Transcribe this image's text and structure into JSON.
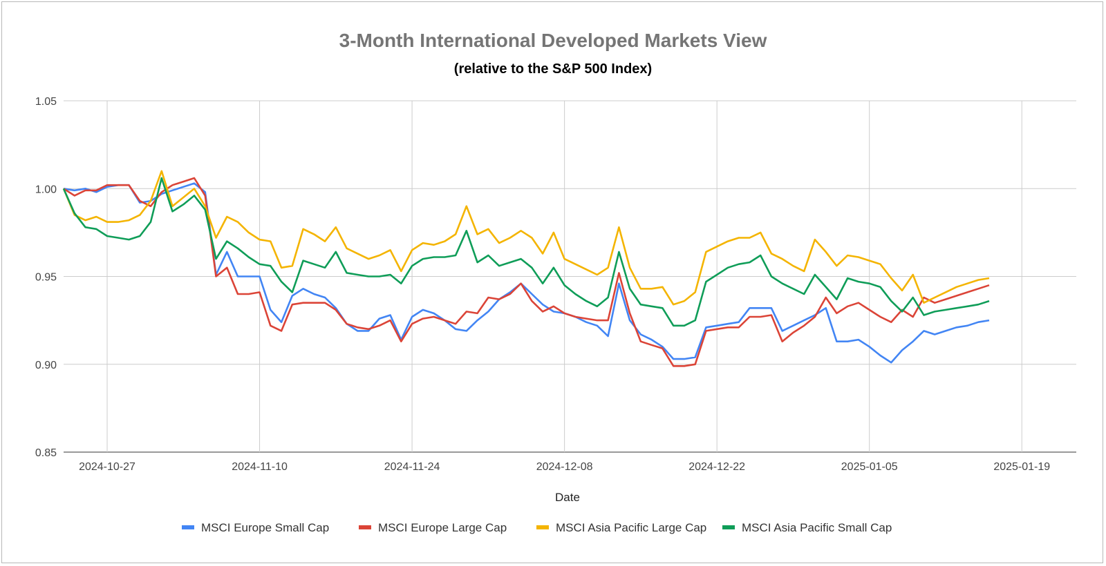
{
  "chart_data": {
    "type": "line",
    "title": "3-Month International Developed Markets View",
    "subtitle": "(relative to the S&P 500 Index)",
    "xlabel": "Date",
    "ylabel": "",
    "ylim": [
      0.85,
      1.05
    ],
    "yticks": [
      1.05,
      1.0,
      0.95,
      0.9,
      0.85
    ],
    "ytick_labels": [
      "1.05",
      "1.00",
      "0.95",
      "0.90",
      "0.85"
    ],
    "x_range_days": [
      -4,
      89
    ],
    "xticks": [
      {
        "day": 0,
        "label": "2024-10-27"
      },
      {
        "day": 14,
        "label": "2024-11-10"
      },
      {
        "day": 28,
        "label": "2024-11-24"
      },
      {
        "day": 42,
        "label": "2024-12-08"
      },
      {
        "day": 56,
        "label": "2024-12-22"
      },
      {
        "day": 70,
        "label": "2025-01-05"
      },
      {
        "day": 84,
        "label": "2025-01-19"
      }
    ],
    "x_days": [
      -4,
      -3,
      -2,
      -1,
      0,
      1,
      2,
      3,
      4,
      5,
      6,
      7,
      8,
      9,
      10,
      11,
      12,
      13,
      14,
      15,
      16,
      17,
      18,
      19,
      20,
      21,
      22,
      23,
      24,
      25,
      26,
      27,
      28,
      29,
      30,
      31,
      32,
      33,
      34,
      35,
      36,
      37,
      38,
      39,
      40,
      41,
      42,
      43,
      44,
      45,
      46,
      47,
      48,
      49,
      50,
      51,
      52,
      53,
      54,
      55,
      56,
      57,
      58,
      59,
      60,
      61,
      62,
      63,
      64,
      65,
      66,
      67,
      68,
      69,
      70,
      71,
      72,
      73,
      74,
      75,
      76,
      77,
      78,
      79,
      80,
      81,
      82,
      83,
      84,
      85
    ],
    "grid": true,
    "legend_position": "bottom",
    "series": [
      {
        "name": "MSCI Europe Small Cap",
        "color": "#4285f4",
        "values": [
          1.0,
          0.999,
          1.0,
          0.998,
          1.001,
          1.002,
          1.002,
          0.992,
          0.993,
          0.997,
          0.999,
          1.001,
          1.003,
          0.998,
          0.951,
          0.964,
          0.95,
          0.95,
          0.95,
          0.931,
          0.924,
          0.939,
          0.943,
          0.94,
          0.938,
          0.932,
          0.923,
          0.919,
          0.919,
          0.926,
          0.928,
          0.914,
          0.927,
          0.931,
          0.929,
          0.925,
          0.92,
          0.919,
          0.925,
          0.93,
          0.937,
          0.941,
          0.946,
          0.94,
          0.934,
          0.93,
          0.929,
          0.927,
          0.924,
          0.922,
          0.916,
          0.946,
          0.925,
          0.917,
          0.914,
          0.91,
          0.903,
          0.903,
          0.904,
          0.921,
          0.922,
          0.923,
          0.924,
          0.932,
          0.932,
          0.932,
          0.919,
          0.922,
          0.925,
          0.928,
          0.932,
          0.913,
          0.913,
          0.914,
          0.91,
          0.905,
          0.901,
          0.908,
          0.913,
          0.919,
          0.917,
          0.919,
          0.921,
          0.922,
          0.924,
          0.925
        ]
      },
      {
        "name": "MSCI Europe Large Cap",
        "color": "#db4437",
        "values": [
          1.0,
          0.996,
          0.999,
          0.999,
          1.002,
          1.002,
          1.002,
          0.993,
          0.99,
          0.998,
          1.002,
          1.004,
          1.006,
          0.996,
          0.95,
          0.955,
          0.94,
          0.94,
          0.941,
          0.922,
          0.919,
          0.934,
          0.935,
          0.935,
          0.935,
          0.931,
          0.923,
          0.921,
          0.92,
          0.922,
          0.925,
          0.913,
          0.923,
          0.926,
          0.927,
          0.925,
          0.923,
          0.93,
          0.929,
          0.938,
          0.937,
          0.94,
          0.946,
          0.936,
          0.93,
          0.933,
          0.929,
          0.927,
          0.926,
          0.925,
          0.925,
          0.952,
          0.929,
          0.913,
          0.911,
          0.909,
          0.899,
          0.899,
          0.9,
          0.919,
          0.92,
          0.921,
          0.921,
          0.927,
          0.927,
          0.928,
          0.913,
          0.918,
          0.922,
          0.927,
          0.938,
          0.929,
          0.933,
          0.935,
          0.931,
          0.927,
          0.924,
          0.931,
          0.927,
          0.938,
          0.935,
          0.937,
          0.939,
          0.941,
          0.943,
          0.945
        ]
      },
      {
        "name": "MSCI Asia Pacific Large Cap",
        "color": "#f4b400",
        "values": [
          1.0,
          0.985,
          0.982,
          0.984,
          0.981,
          0.981,
          0.982,
          0.985,
          0.993,
          1.01,
          0.99,
          0.995,
          1.0,
          0.99,
          0.972,
          0.984,
          0.981,
          0.975,
          0.971,
          0.97,
          0.955,
          0.956,
          0.977,
          0.974,
          0.97,
          0.978,
          0.966,
          0.963,
          0.96,
          0.962,
          0.965,
          0.953,
          0.965,
          0.969,
          0.968,
          0.97,
          0.974,
          0.99,
          0.974,
          0.977,
          0.969,
          0.972,
          0.976,
          0.972,
          0.963,
          0.975,
          0.96,
          0.957,
          0.954,
          0.951,
          0.955,
          0.978,
          0.955,
          0.943,
          0.943,
          0.944,
          0.934,
          0.936,
          0.941,
          0.964,
          0.967,
          0.97,
          0.972,
          0.972,
          0.975,
          0.963,
          0.96,
          0.956,
          0.953,
          0.971,
          0.964,
          0.956,
          0.962,
          0.961,
          0.959,
          0.957,
          0.949,
          0.942,
          0.951,
          0.935,
          0.938,
          0.941,
          0.944,
          0.946,
          0.948,
          0.949
        ]
      },
      {
        "name": "MSCI Asia Pacific Small Cap",
        "color": "#0f9d58",
        "values": [
          1.0,
          0.986,
          0.978,
          0.977,
          0.973,
          0.972,
          0.971,
          0.973,
          0.981,
          1.006,
          0.987,
          0.991,
          0.996,
          0.988,
          0.96,
          0.97,
          0.966,
          0.961,
          0.957,
          0.956,
          0.947,
          0.941,
          0.959,
          0.957,
          0.955,
          0.964,
          0.952,
          0.951,
          0.95,
          0.95,
          0.951,
          0.946,
          0.956,
          0.96,
          0.961,
          0.961,
          0.962,
          0.976,
          0.958,
          0.962,
          0.956,
          0.958,
          0.96,
          0.955,
          0.946,
          0.955,
          0.945,
          0.94,
          0.936,
          0.933,
          0.938,
          0.964,
          0.943,
          0.934,
          0.933,
          0.932,
          0.922,
          0.922,
          0.925,
          0.947,
          0.951,
          0.955,
          0.957,
          0.958,
          0.962,
          0.95,
          0.946,
          0.943,
          0.94,
          0.951,
          0.944,
          0.937,
          0.949,
          0.947,
          0.946,
          0.944,
          0.936,
          0.93,
          0.938,
          0.928,
          0.93,
          0.931,
          0.932,
          0.933,
          0.934,
          0.936
        ]
      }
    ]
  }
}
